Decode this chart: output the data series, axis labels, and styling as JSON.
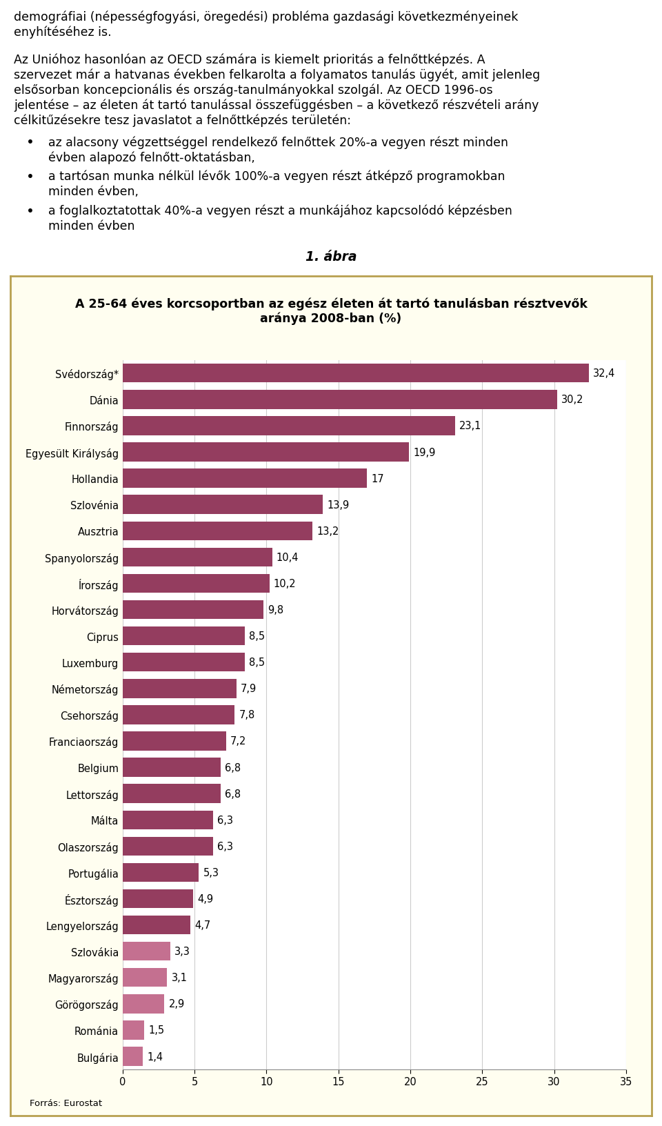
{
  "text_lines": [
    "demográfiai (népességfogyási, öregedési) probléma gazdasági következményeinek",
    "enyhítéséhez is.",
    "",
    "Az Unióhoz hasonlóan az OECD számára is kiemelt prioritás a felnőttképzés. A",
    "szervezet már a hatvanas években felkarolta a folyamatos tanulás ügyét, amit jelenleg",
    "elsősorban koncepcionális és ország-tanulmányokkal szolgál. Az OECD 1996-os",
    "jelentése – az életen át tartó tanulással összefüggésben – a következő részvételi arány",
    "célkitűzésekre tesz javaslatot a felnőttképzés területén:"
  ],
  "bullets": [
    [
      "az alacsony végzettséggel rendelkező felnőttek 20%-a vegyen részt minden",
      "évben alapozó felnőtt-oktatásban,"
    ],
    [
      "a tartósan munka nélkül lévők 100%-a vegyen részt átképző programokban",
      "minden évben,"
    ],
    [
      "a foglalkoztatottak 40%-a vegyen részt a munkájához kapcsolódó képzésben",
      "minden évben"
    ]
  ],
  "figure_label": "1. ábra",
  "chart_title_line1": "A 25-64 éves korcsoportban az egész életen át tartó tanulásban résztvevők",
  "chart_title_line2": "aránya 2008-ban (%)",
  "source_text": "Forrás: Eurostat",
  "categories": [
    "Svédország*",
    "Dánia",
    "Finnország",
    "Egyesült Királyság",
    "Hollandia",
    "Szlovénia",
    "Ausztria",
    "Spanyolország",
    "Írország",
    "Horvátország",
    "Ciprus",
    "Luxemburg",
    "Németország",
    "Csehország",
    "Franciaország",
    "Belgium",
    "Lettország",
    "Málta",
    "Olaszország",
    "Portugália",
    "Észtország",
    "Lengyelország",
    "Szlovákia",
    "Magyarország",
    "Görögország",
    "Románia",
    "Bulgária"
  ],
  "values": [
    32.4,
    30.2,
    23.1,
    19.9,
    17.0,
    13.9,
    13.2,
    10.4,
    10.2,
    9.8,
    8.5,
    8.5,
    7.9,
    7.8,
    7.2,
    6.8,
    6.8,
    6.3,
    6.3,
    5.3,
    4.9,
    4.7,
    3.3,
    3.1,
    2.9,
    1.5,
    1.4
  ],
  "bar_color": "#943d5f",
  "bar_color_light": "#c47090",
  "xlim": [
    0,
    35
  ],
  "xticks": [
    0,
    5,
    10,
    15,
    20,
    25,
    30,
    35
  ],
  "outer_bg": "#fffef0",
  "border_color": "#b8a050",
  "text_font_size": 12.5,
  "title_font_size": 12.5,
  "label_font_size": 10.5,
  "value_font_size": 10.5,
  "source_font_size": 9.5,
  "figure_label_size": 13.5
}
